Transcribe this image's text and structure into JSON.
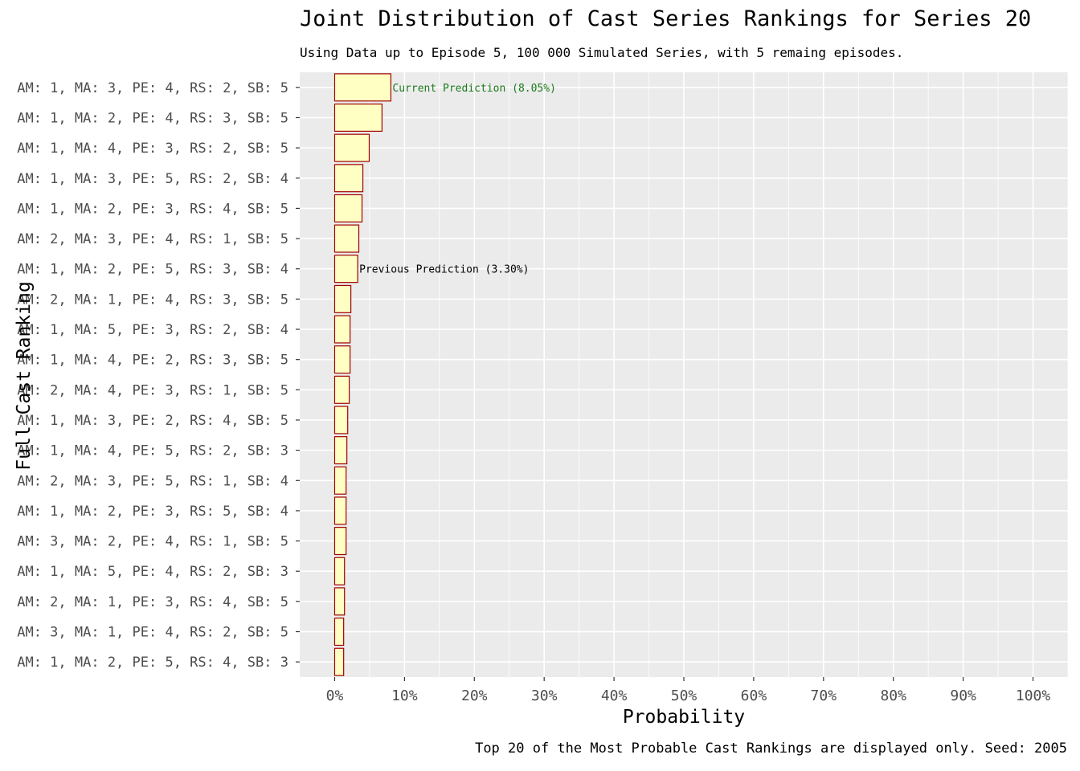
{
  "chart_data": {
    "type": "bar",
    "orientation": "horizontal",
    "title": "Joint Distribution of Cast Series Rankings for Series 20",
    "subtitle": "Using Data up to Episode 5, 100 000 Simulated Series, with 5 remaing episodes.",
    "caption": "Top 20 of the Most Probable Cast Rankings are displayed only. Seed: 2005",
    "xlabel": "Probability",
    "ylabel": "Full Cast Ranking",
    "xlim": [
      -5,
      105
    ],
    "x_ticks": [
      "0%",
      "10%",
      "20%",
      "30%",
      "40%",
      "50%",
      "60%",
      "70%",
      "80%",
      "90%",
      "100%"
    ],
    "grid": true,
    "categories": [
      "AM: 1, MA: 3, PE: 4, RS: 2, SB: 5",
      "AM: 1, MA: 2, PE: 4, RS: 3, SB: 5",
      "AM: 1, MA: 4, PE: 3, RS: 2, SB: 5",
      "AM: 1, MA: 3, PE: 5, RS: 2, SB: 4",
      "AM: 1, MA: 2, PE: 3, RS: 4, SB: 5",
      "AM: 2, MA: 3, PE: 4, RS: 1, SB: 5",
      "AM: 1, MA: 2, PE: 5, RS: 3, SB: 4",
      "AM: 2, MA: 1, PE: 4, RS: 3, SB: 5",
      "AM: 1, MA: 5, PE: 3, RS: 2, SB: 4",
      "AM: 1, MA: 4, PE: 2, RS: 3, SB: 5",
      "AM: 2, MA: 4, PE: 3, RS: 1, SB: 5",
      "AM: 1, MA: 3, PE: 2, RS: 4, SB: 5",
      "AM: 1, MA: 4, PE: 5, RS: 2, SB: 3",
      "AM: 2, MA: 3, PE: 5, RS: 1, SB: 4",
      "AM: 1, MA: 2, PE: 3, RS: 5, SB: 4",
      "AM: 3, MA: 2, PE: 4, RS: 1, SB: 5",
      "AM: 1, MA: 5, PE: 4, RS: 2, SB: 3",
      "AM: 2, MA: 1, PE: 3, RS: 4, SB: 5",
      "AM: 3, MA: 1, PE: 4, RS: 2, SB: 5",
      "AM: 1, MA: 2, PE: 5, RS: 4, SB: 3"
    ],
    "values": [
      8.05,
      6.78,
      4.95,
      4.04,
      3.92,
      3.46,
      3.3,
      2.32,
      2.21,
      2.21,
      2.09,
      1.87,
      1.75,
      1.64,
      1.64,
      1.64,
      1.41,
      1.41,
      1.29,
      1.29
    ],
    "annotations": [
      {
        "category_index": 0,
        "text": "Current Prediction (8.05%)",
        "color": "#1a7a1a"
      },
      {
        "category_index": 6,
        "text": "Previous Prediction (3.30%)",
        "color": "#000000"
      }
    ],
    "colors": {
      "bar_fill": "#FFFFC4",
      "bar_stroke": "#A00000",
      "panel": "#EBEBEB",
      "grid": "#FFFFFF"
    }
  }
}
